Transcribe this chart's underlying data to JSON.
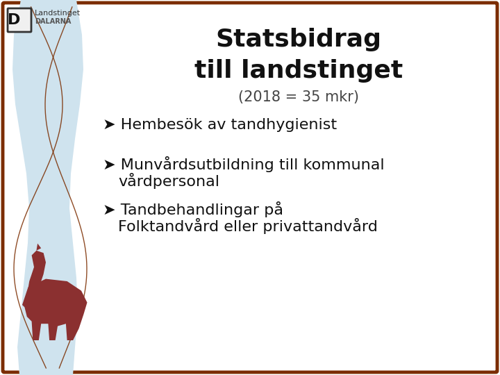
{
  "title_line1": "Statsbidrag",
  "title_line2": "till landstinget",
  "subtitle": "(2018 = 35 mkr)",
  "bullet1_line1": "➤ Hembesök av tandhygienist",
  "bullet2_line1": "➤ Munvårdsutbildning till kommunal",
  "bullet2_line2": "   vårdpersonal",
  "bullet3_line1": "➤ Tandbehandlingar på",
  "bullet3_line2": "   Folktandvård eller privattandvård",
  "background_color": "#ffffff",
  "border_color": "#7B2D00",
  "title_color": "#111111",
  "subtitle_color": "#444444",
  "bullet_color": "#111111",
  "title_fontsize": 26,
  "subtitle_fontsize": 15,
  "bullet_fontsize": 16,
  "wave_fill": "#cfe3ee",
  "line_color": "#7B2D00",
  "horse_color": "#8B3030"
}
